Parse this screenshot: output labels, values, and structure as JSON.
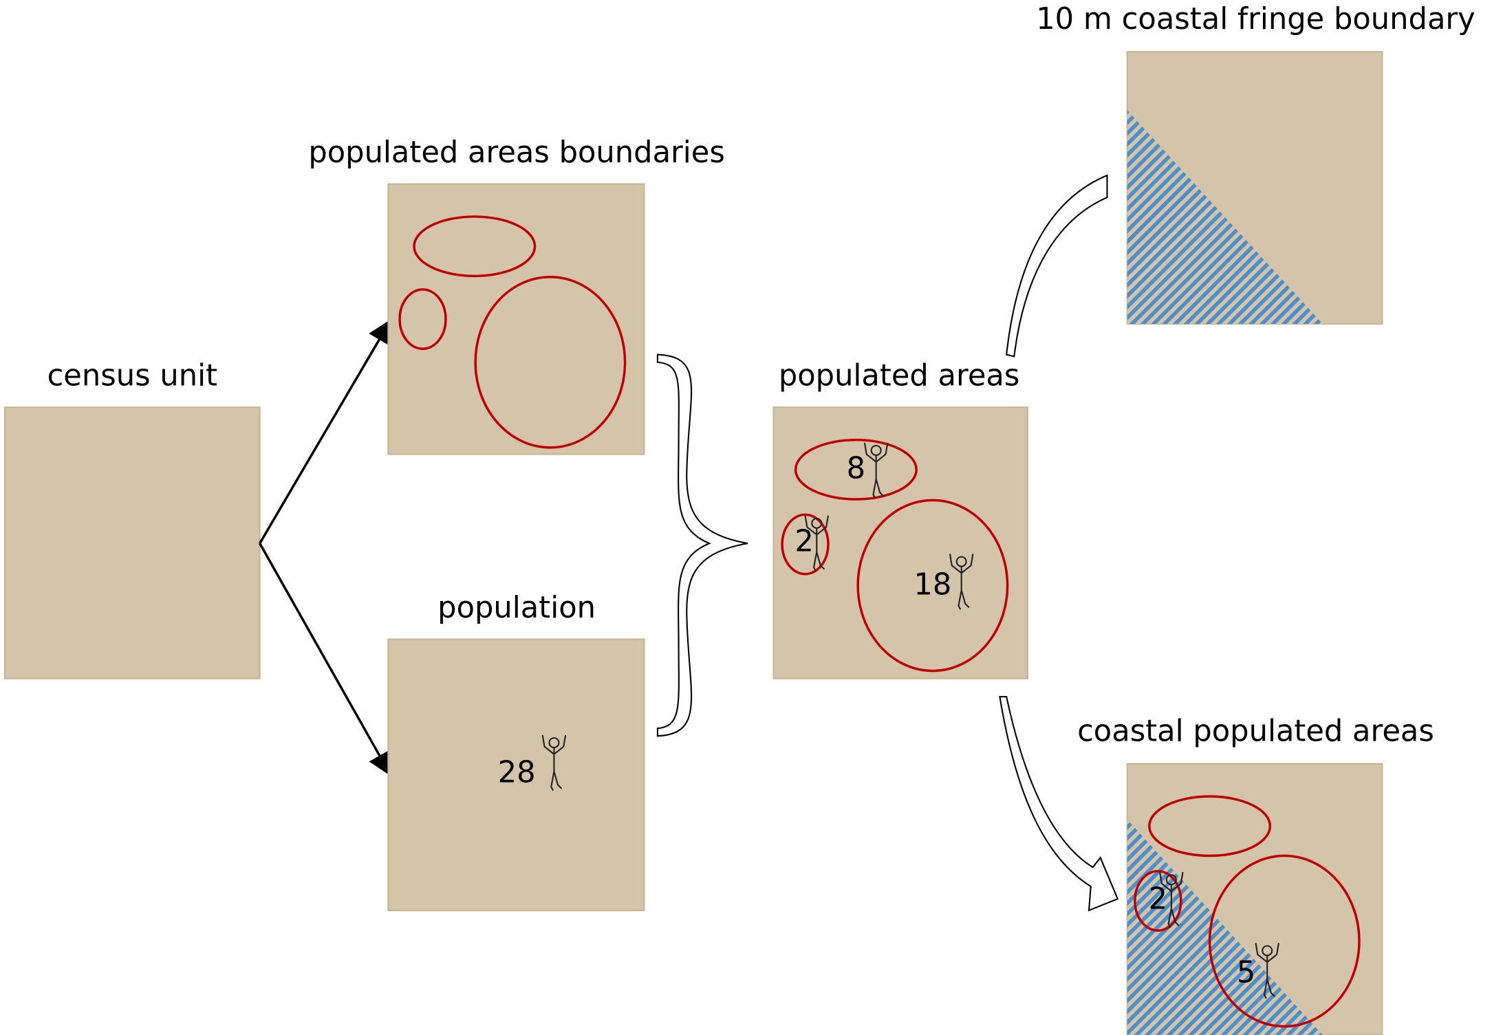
{
  "panels": {
    "census": {
      "title": "census unit"
    },
    "boundaries": {
      "title": "populated areas boundaries"
    },
    "population": {
      "title": "population",
      "count": 28
    },
    "populated": {
      "title": "populated areas",
      "counts": [
        8,
        2,
        18
      ]
    },
    "fringe": {
      "title": "10 m coastal fringe boundary"
    },
    "coastal": {
      "title": "coastal populated areas",
      "counts": [
        2,
        5
      ]
    }
  }
}
